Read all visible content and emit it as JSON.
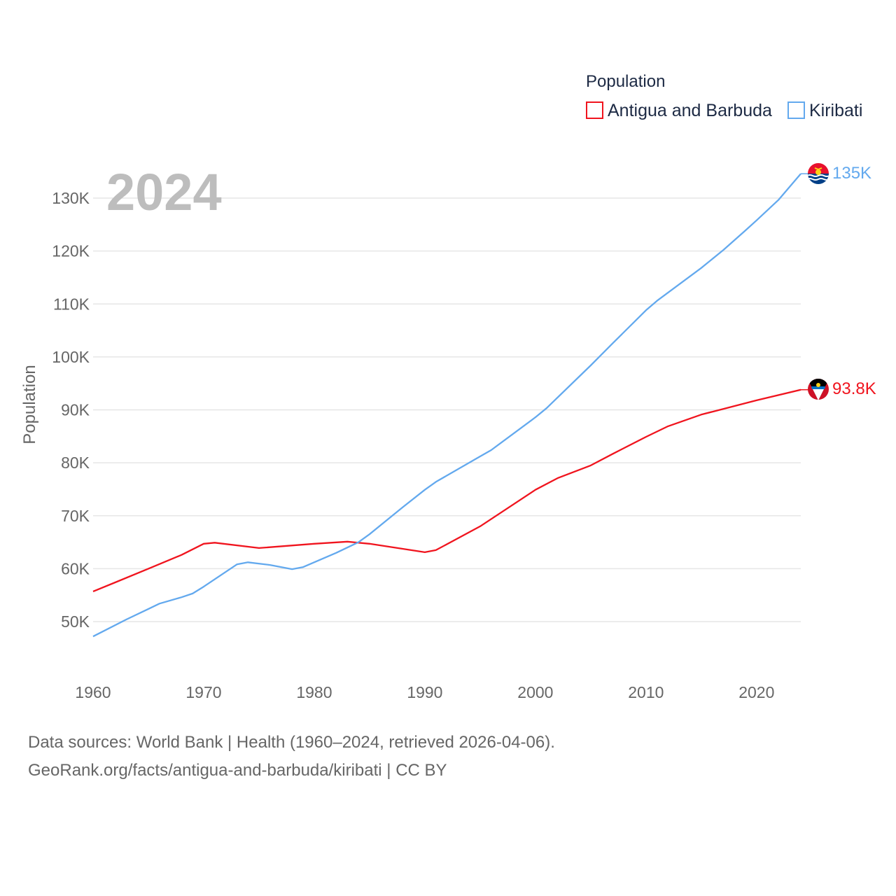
{
  "chart_data": {
    "type": "line",
    "title": "",
    "year_label": "2024",
    "xlabel": "",
    "ylabel": "Population",
    "xlim": [
      1960,
      2024
    ],
    "ylim": [
      43000,
      137000
    ],
    "x_ticks": [
      1960,
      1970,
      1980,
      1990,
      2000,
      2010,
      2020
    ],
    "x_tick_labels": [
      "1960",
      "1970",
      "1980",
      "1990",
      "2000",
      "2010",
      "2020"
    ],
    "y_ticks": [
      50000,
      60000,
      70000,
      80000,
      90000,
      100000,
      110000,
      120000,
      130000
    ],
    "y_tick_labels": [
      "50K",
      "60K",
      "70K",
      "80K",
      "90K",
      "100K",
      "110K",
      "120K",
      "130K"
    ],
    "grid": true,
    "legend": {
      "title": "Population",
      "placement": "top-right"
    },
    "series": [
      {
        "name": "Antigua and Barbuda",
        "color": "#f0141e",
        "end_label": "93.8K",
        "x": [
          1960,
          1962,
          1965,
          1968,
          1970,
          1971,
          1975,
          1980,
          1983,
          1985,
          1990,
          1991,
          1995,
          2000,
          2002,
          2005,
          2007,
          2010,
          2012,
          2015,
          2020,
          2024
        ],
        "y": [
          55700,
          57400,
          60000,
          62600,
          64700,
          64900,
          63900,
          64700,
          65100,
          64700,
          63100,
          63500,
          68000,
          74900,
          77100,
          79500,
          81700,
          84900,
          86900,
          89100,
          91800,
          93800
        ]
      },
      {
        "name": "Kiribati",
        "color": "#63a9ee",
        "end_label": "135K",
        "x": [
          1960,
          1963,
          1965,
          1966,
          1968,
          1969,
          1970,
          1973,
          1974,
          1976,
          1978,
          1979,
          1982,
          1984,
          1985,
          1988,
          1990,
          1991,
          1995,
          1996,
          2000,
          2001,
          2005,
          2007,
          2010,
          2011,
          2015,
          2017,
          2019,
          2020,
          2022,
          2024
        ],
        "y": [
          47200,
          50400,
          52400,
          53400,
          54600,
          55300,
          56600,
          60800,
          61200,
          60700,
          59900,
          60300,
          63000,
          65000,
          66500,
          71600,
          74900,
          76400,
          81200,
          82400,
          88600,
          90300,
          98400,
          102600,
          108800,
          110600,
          116800,
          120200,
          123900,
          125800,
          129700,
          134600
        ]
      }
    ]
  },
  "footer": {
    "line1": "Data sources: World Bank | Health (1960–2024, retrieved 2026-04-06).",
    "line2": "GeoRank.org/facts/antigua-and-barbuda/kiribati | CC BY"
  }
}
